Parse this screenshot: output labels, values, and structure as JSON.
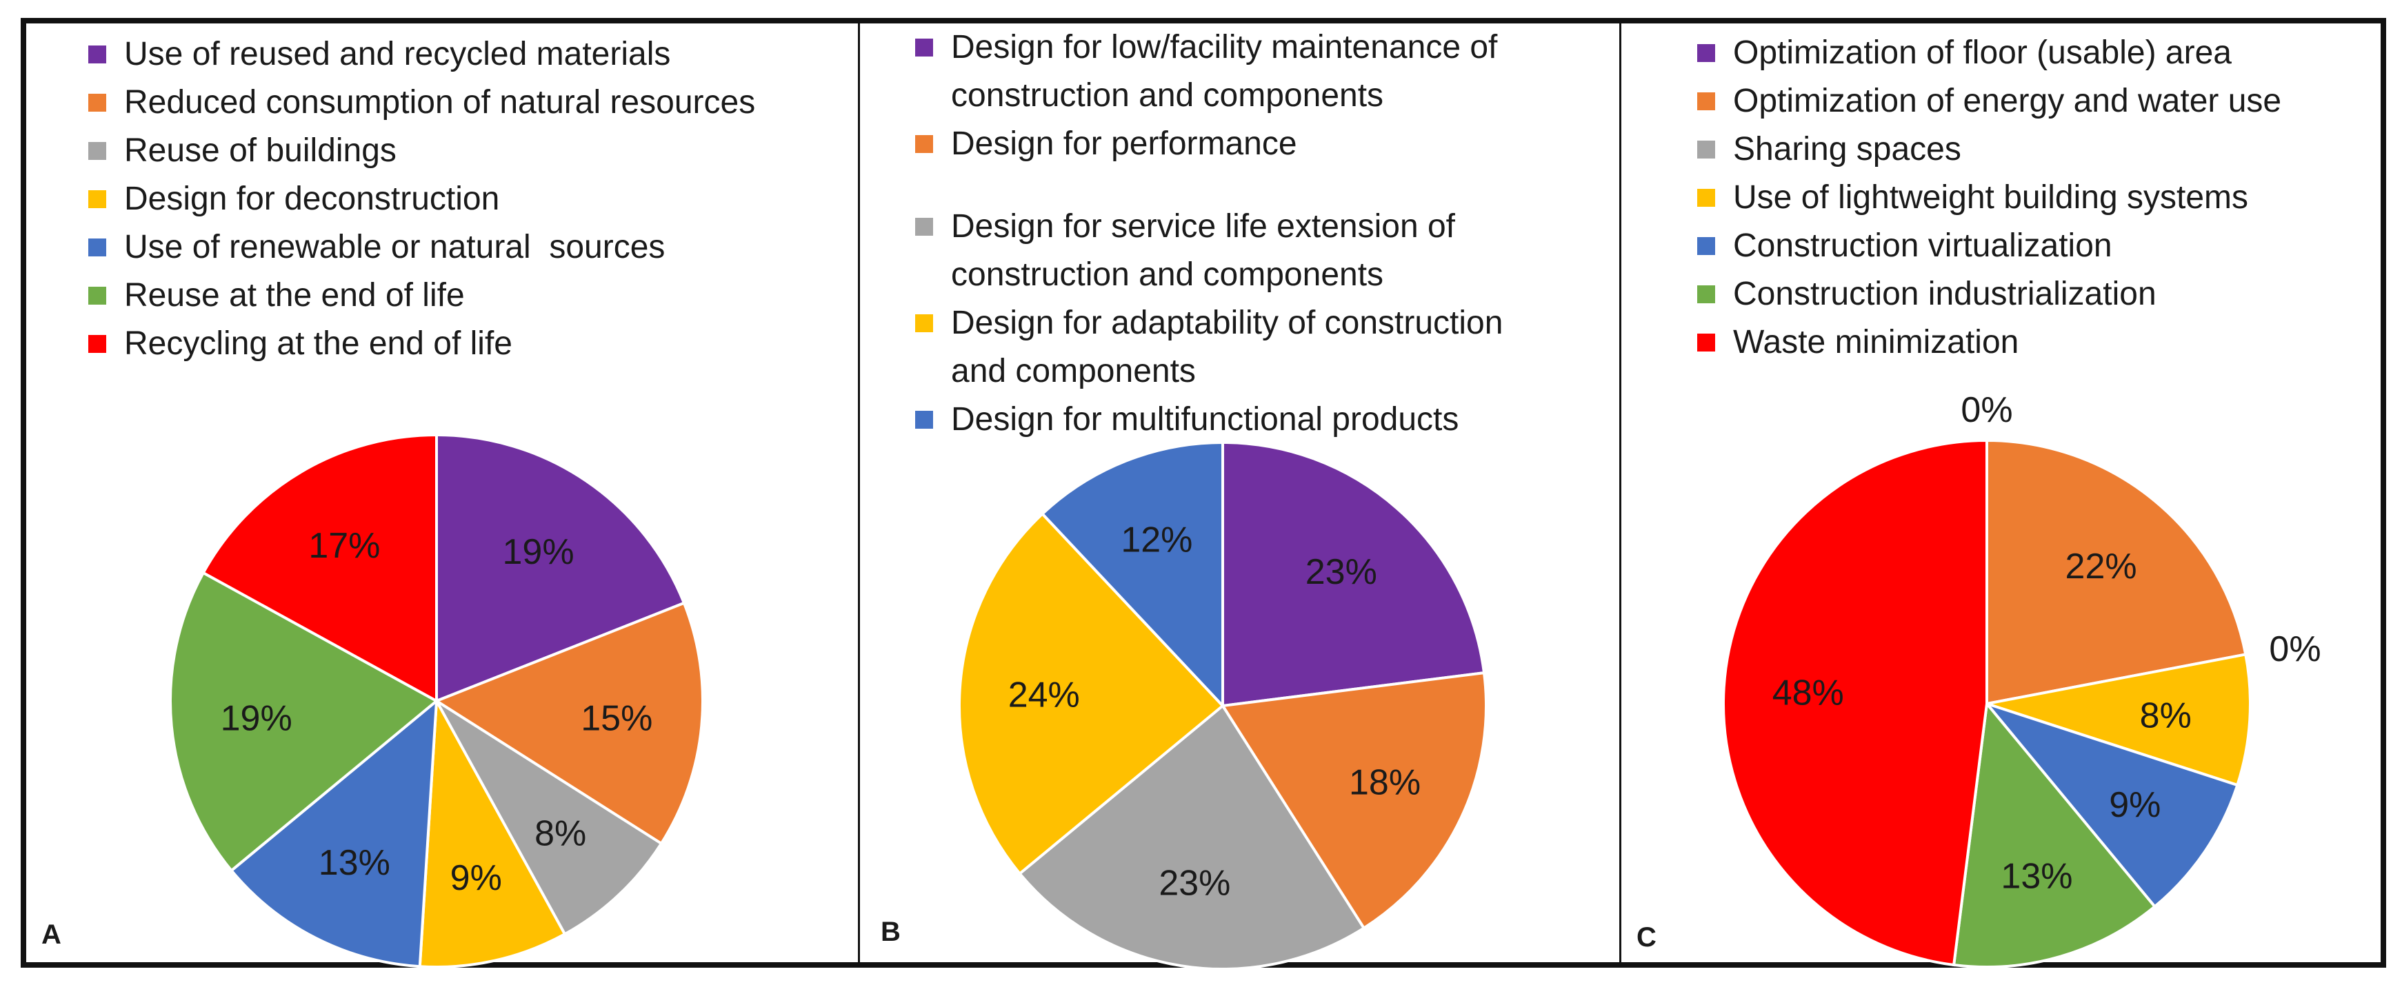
{
  "chart_data": [
    {
      "type": "pie",
      "panel": "A",
      "categories": [
        "Use of reused and recycled materials",
        "Reduced consumption of natural resources",
        "Reuse of buildings",
        "Design for deconstruction",
        "Use of renewable or natural  sources",
        "Reuse at the end of life",
        "Recycling at the end of life"
      ],
      "values": [
        19,
        15,
        8,
        9,
        13,
        19,
        17
      ],
      "labels": [
        "19%",
        "15%",
        "8%",
        "9%",
        "13%",
        "19%",
        "17%"
      ],
      "colors": [
        "#7030a0",
        "#ed7d31",
        "#a5a5a5",
        "#ffc000",
        "#4472c4",
        "#70ad47",
        "#ff0000"
      ]
    },
    {
      "type": "pie",
      "panel": "B",
      "categories": [
        "Design for low/facility maintenance of construction and components",
        "Design for performance",
        "Design for service life extension of construction and components",
        "Design for adaptability of construction and components",
        "Design for multifunctional products"
      ],
      "values": [
        23,
        18,
        23,
        24,
        12
      ],
      "labels": [
        "23%",
        "18%",
        "23%",
        "24%",
        "12%"
      ],
      "colors": [
        "#7030a0",
        "#ed7d31",
        "#a5a5a5",
        "#ffc000",
        "#4472c4"
      ]
    },
    {
      "type": "pie",
      "panel": "C",
      "categories": [
        "Optimization of floor (usable) area",
        "Optimization of energy and water use",
        "Sharing spaces",
        "Use of lightweight building systems",
        "Construction virtualization",
        "Construction industrialization",
        "Waste minimization"
      ],
      "values": [
        0,
        22,
        0,
        8,
        9,
        13,
        48
      ],
      "labels": [
        "0%",
        "22%",
        "0%",
        "8%",
        "9%",
        "13%",
        "48%"
      ],
      "colors": [
        "#7030a0",
        "#ed7d31",
        "#a5a5a5",
        "#ffc000",
        "#4472c4",
        "#70ad47",
        "#ff0000"
      ]
    }
  ],
  "panelA": {
    "letter": "A",
    "legend": [
      "Use of reused and recycled materials",
      "Reduced consumption of natural resources",
      "Reuse of buildings",
      "Design for deconstruction",
      "Use of renewable or natural  sources",
      "Reuse at the end of life",
      "Recycling at the end of life"
    ]
  },
  "panelB": {
    "letter": "B",
    "legend": [
      [
        "Design for low/facility maintenance of",
        "construction and components"
      ],
      [
        "Design for performance"
      ],
      [
        "Design for service life extension of",
        "construction and components"
      ],
      [
        "Design for adaptability of construction",
        "and components"
      ],
      [
        "Design for multifunctional products"
      ]
    ]
  },
  "panelC": {
    "letter": "C",
    "legend": [
      "Optimization of floor (usable) area",
      "Optimization of energy and water use",
      "Sharing spaces",
      "Use of lightweight building systems",
      "Construction virtualization",
      "Construction industrialization",
      "Waste minimization"
    ]
  }
}
